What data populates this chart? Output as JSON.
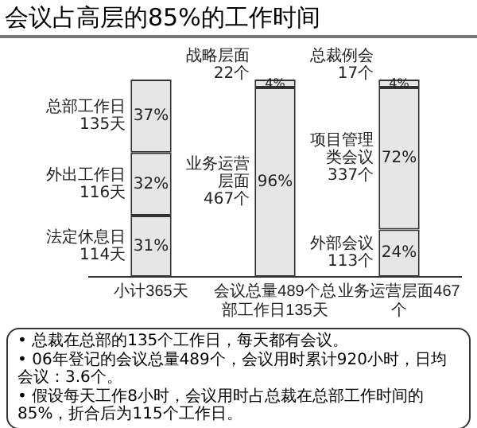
{
  "chart_data": {
    "type": "bar",
    "title": "会议占高层的85%的工作时间",
    "stacked": true,
    "categories": [
      "小计365天",
      "会议总量489个总部工作日135天",
      "业务运营层面467个"
    ],
    "series": [
      {
        "name": "法定休息日 114天",
        "color": "#e6e6e6",
        "values": [
          31,
          null,
          null
        ],
        "value_labels": [
          "31%",
          null,
          null
        ]
      },
      {
        "name": "外出工作日 116天",
        "color": "#e6e6e6",
        "values": [
          32,
          null,
          null
        ],
        "value_labels": [
          "32%",
          null,
          null
        ]
      },
      {
        "name": "总部工作日 135天",
        "color": "#e6e6e6",
        "values": [
          37,
          null,
          null
        ],
        "value_labels": [
          "37%",
          null,
          null
        ]
      },
      {
        "name": "业务运营层面 467个",
        "color": "#e6e6e6",
        "values": [
          null,
          96,
          null
        ],
        "value_labels": [
          null,
          "96%",
          null
        ]
      },
      {
        "name": "战略层面 22个",
        "color": "#e6e6e6",
        "values": [
          null,
          4,
          null
        ],
        "value_labels": [
          null,
          "4%",
          null
        ]
      },
      {
        "name": "外部会议 113个",
        "color": "#e6e6e6",
        "values": [
          null,
          null,
          24
        ],
        "value_labels": [
          null,
          null,
          "24%"
        ]
      },
      {
        "name": "项目管理类会议 337个",
        "color": "#e6e6e6",
        "values": [
          null,
          null,
          72
        ],
        "value_labels": [
          null,
          null,
          "72%"
        ]
      },
      {
        "name": "总裁例会 17个",
        "color": "#e6e6e6",
        "values": [
          null,
          null,
          4
        ],
        "value_labels": [
          null,
          null,
          "4%"
        ]
      }
    ],
    "ylim": [
      0,
      100
    ],
    "tick_labels": "x",
    "grid": false,
    "annotations": [
      "• 总裁在总部的135个工作日，每天都有会议。",
      "• 06年登记的会议总量489个，会议用时累计920小时，日均会议：3.6个。",
      "• 假设每天工作8小时，会议用时占总裁在总部工作时间的85%，折合后为115个工作日。"
    ]
  }
}
